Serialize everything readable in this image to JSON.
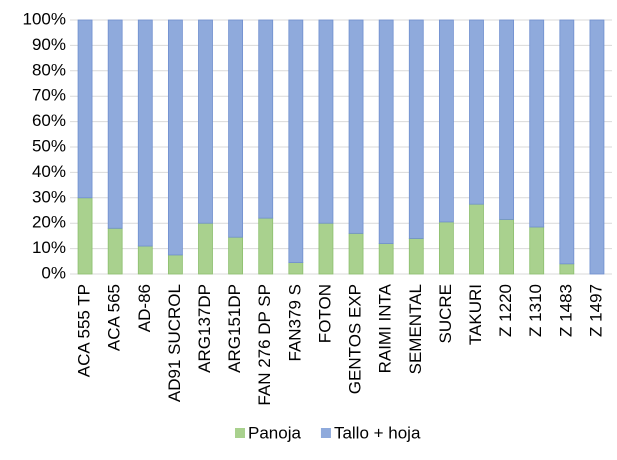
{
  "chart_data": {
    "type": "stacked_bar_100",
    "categories": [
      "ACA 555 TP",
      "ACA 565",
      "AD-86",
      "AD91 SUCROL",
      "ARG137DP",
      "ARG151DP",
      "FAN 276 DP SP",
      "FAN379 S",
      "FOTON",
      "GENTOS EXP",
      "RAIMI INTA",
      "SEMENTAL",
      "SUCRE",
      "TAKURI",
      "Z 1220",
      "Z 1310",
      "Z 1483",
      "Z 1497"
    ],
    "series": [
      {
        "name": "Panoja",
        "color": "#a9d18e",
        "values": [
          30,
          18,
          11,
          7.5,
          20,
          14.5,
          22,
          4.5,
          20,
          16,
          12,
          14,
          20.5,
          27.5,
          21.5,
          18.5,
          4,
          0
        ]
      },
      {
        "name": "Tallo + hoja",
        "color": "#8faadc",
        "values": [
          70,
          82,
          89,
          92.5,
          80,
          85.5,
          78,
          95.5,
          80,
          84,
          88,
          86,
          79.5,
          72.5,
          78.5,
          81.5,
          96,
          100
        ]
      }
    ],
    "ylim": [
      0,
      100
    ],
    "yticks": [
      {
        "value": 0,
        "label": "0%"
      },
      {
        "value": 10,
        "label": "10%"
      },
      {
        "value": 20,
        "label": "20%"
      },
      {
        "value": 30,
        "label": "30%"
      },
      {
        "value": 40,
        "label": "40%"
      },
      {
        "value": 50,
        "label": "50%"
      },
      {
        "value": 60,
        "label": "60%"
      },
      {
        "value": 70,
        "label": "70%"
      },
      {
        "value": 80,
        "label": "80%"
      },
      {
        "value": 90,
        "label": "90%"
      },
      {
        "value": 100,
        "label": "100%"
      }
    ],
    "grid": true,
    "legend": "bottom"
  }
}
